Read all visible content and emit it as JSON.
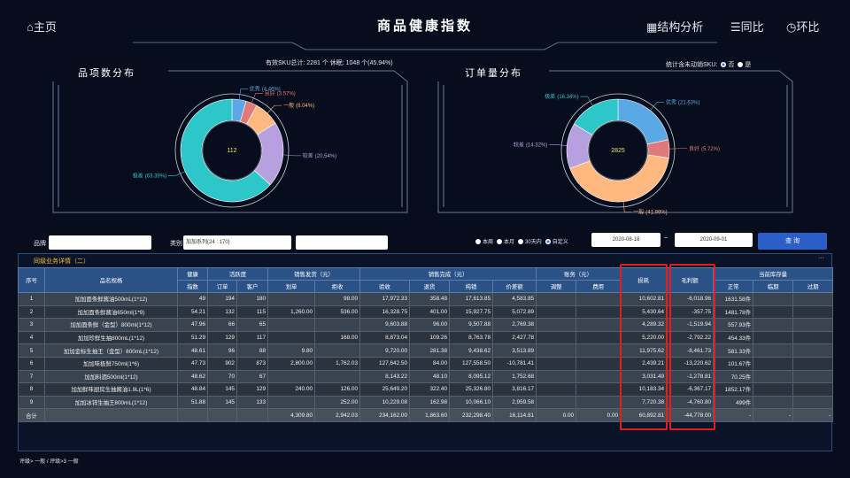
{
  "header": {
    "home": "主页",
    "title": "商品健康指数",
    "actions": [
      "结构分析",
      "同比",
      "环比"
    ]
  },
  "summary": "有效SKU总计: 2281 个   休眠: 1048 个(45.94%)",
  "stat_toggle": {
    "label": "统计含未动销SKU:",
    "options": [
      "否",
      "是"
    ]
  },
  "chart_data": [
    {
      "type": "pie",
      "title": "品项数分布",
      "total": 112,
      "categories": [
        "优秀",
        "良好",
        "一般",
        "较差",
        "极差"
      ],
      "values": [
        4.46,
        3.57,
        8.04,
        20.54,
        63.39
      ],
      "value_labels": [
        "(4.46%)",
        "(3.57%)",
        "(8.04%)",
        "(20.54%)",
        "(63.39%)"
      ],
      "colors": [
        "#5aa9e6",
        "#e07a7a",
        "#ffb880",
        "#b7a0e0",
        "#2ec7c9"
      ]
    },
    {
      "type": "pie",
      "title": "订单量分布",
      "total": 2825,
      "categories": [
        "优秀",
        "良好",
        "一般",
        "较差",
        "极差"
      ],
      "values": [
        21.63,
        5.72,
        41.99,
        14.32,
        16.34
      ],
      "value_labels": [
        "(21.63%)",
        "(5.72%)",
        "(41.99%)",
        "(14.32%)",
        "(16.34%)"
      ],
      "colors": [
        "#5aa9e6",
        "#e07a7a",
        "#ffb880",
        "#b7a0e0",
        "#2ec7c9"
      ]
    }
  ],
  "filters": {
    "brand_label": "品牌",
    "category_label": "类别",
    "category_value": "加加系列(24 : 170)",
    "periods": [
      "本周",
      "本月",
      "30天内",
      "自定义"
    ],
    "date_from": "2020-08-18",
    "date_sep": "~",
    "date_to": "2020-09-01",
    "query": "查 询"
  },
  "table": {
    "title": "同级业务详情（二）",
    "more": "···",
    "group_headers": [
      "序号",
      "品名规格",
      "健康",
      "活跃度",
      "销售发货（元）",
      "销售完成（元）",
      "账务（元）",
      "损耗",
      "毛利额",
      "当前库存量"
    ],
    "sub_headers": [
      "指数",
      "订单",
      "客户",
      "划单",
      "拒收",
      "验收",
      "退货",
      "纯销",
      "价差额",
      "调整",
      "费用",
      "正常",
      "临期",
      "过期"
    ],
    "rows": [
      [
        "1",
        "加加面条鲜酱油500mL(1*12)",
        "49",
        "194",
        "180",
        null,
        "98.00",
        "17,972.33",
        "358.48",
        "17,613.85",
        "4,583.85",
        null,
        null,
        "10,602.81",
        "-6,018.96",
        "1631.58件",
        null,
        null
      ],
      [
        "2",
        "加加面条鲜酱油650ml(1*9)",
        "54.21",
        "132",
        "115",
        "1,260.00",
        "536.00",
        "16,328.75",
        "401.00",
        "15,927.75",
        "5,072.89",
        null,
        null,
        "5,430.64",
        "-357.75",
        "1481.78件",
        null,
        null
      ],
      [
        "3",
        "加加面条鲜（金型）800ml(1*12)",
        "47.96",
        "66",
        "65",
        null,
        null,
        "9,603.88",
        "96.00",
        "9,507.88",
        "2,769.38",
        null,
        null,
        "4,289.32",
        "-1,519.94",
        "557.93件",
        null,
        null
      ],
      [
        "4",
        "加加珍鲜生抽800mL(1*12)",
        "51.29",
        "129",
        "117",
        null,
        "168.00",
        "8,873.04",
        "109.26",
        "8,763.78",
        "2,427.78",
        null,
        null,
        "5,220.00",
        "-2,792.22",
        "454.33件",
        null,
        null
      ],
      [
        "5",
        "加加金标生抽王（金型）800mL(1*12)",
        "48.61",
        "96",
        "88",
        "9.80",
        null,
        "9,720.00",
        "281.38",
        "9,438.62",
        "3,513.89",
        null,
        null,
        "11,975.62",
        "-8,461.73",
        "581.33件",
        null,
        null
      ],
      [
        "6",
        "加加味极鲜750ml(1*6)",
        "47.73",
        "902",
        "873",
        "2,800.00",
        "1,762.03",
        "127,642.50",
        "84.00",
        "127,558.50",
        "-10,781.41",
        null,
        null,
        "2,439.21",
        "-13,220.62",
        "101.67件",
        null,
        null
      ],
      [
        "7",
        "加加料酒500ml(1*12)",
        "48.62",
        "70",
        "67",
        null,
        null,
        "8,143.22",
        "48.10",
        "8,095.12",
        "1,752.68",
        null,
        null,
        "3,031.49",
        "-1,278.81",
        "70.25件",
        null,
        null
      ],
      [
        "8",
        "加加鲜味厨房生抽酱油1.9L(1*6)",
        "48.84",
        "145",
        "129",
        "240.00",
        "126.00",
        "25,649.20",
        "322.40",
        "25,326.80",
        "3,816.17",
        null,
        null,
        "10,183.34",
        "-6,367.17",
        "1852.17件",
        null,
        null
      ],
      [
        "9",
        "加加冰锌生抽王800mL(1*12)",
        "51.88",
        "145",
        "133",
        null,
        "252.00",
        "10,229.08",
        "162.98",
        "10,066.10",
        "2,959.58",
        null,
        null,
        "7,720.38",
        "-4,760.80",
        "499件",
        null,
        null
      ]
    ],
    "total": [
      "合计",
      null,
      null,
      null,
      null,
      "4,309.80",
      "2,942.03",
      "234,162.00",
      "1,863.60",
      "232,298.40",
      "16,114.81",
      "0.00",
      "0.00",
      "60,892.81",
      "-44,778.00",
      "-",
      "-",
      "-"
    ]
  },
  "breadcrumb": "评级> 一般 / 评级>3 一般"
}
